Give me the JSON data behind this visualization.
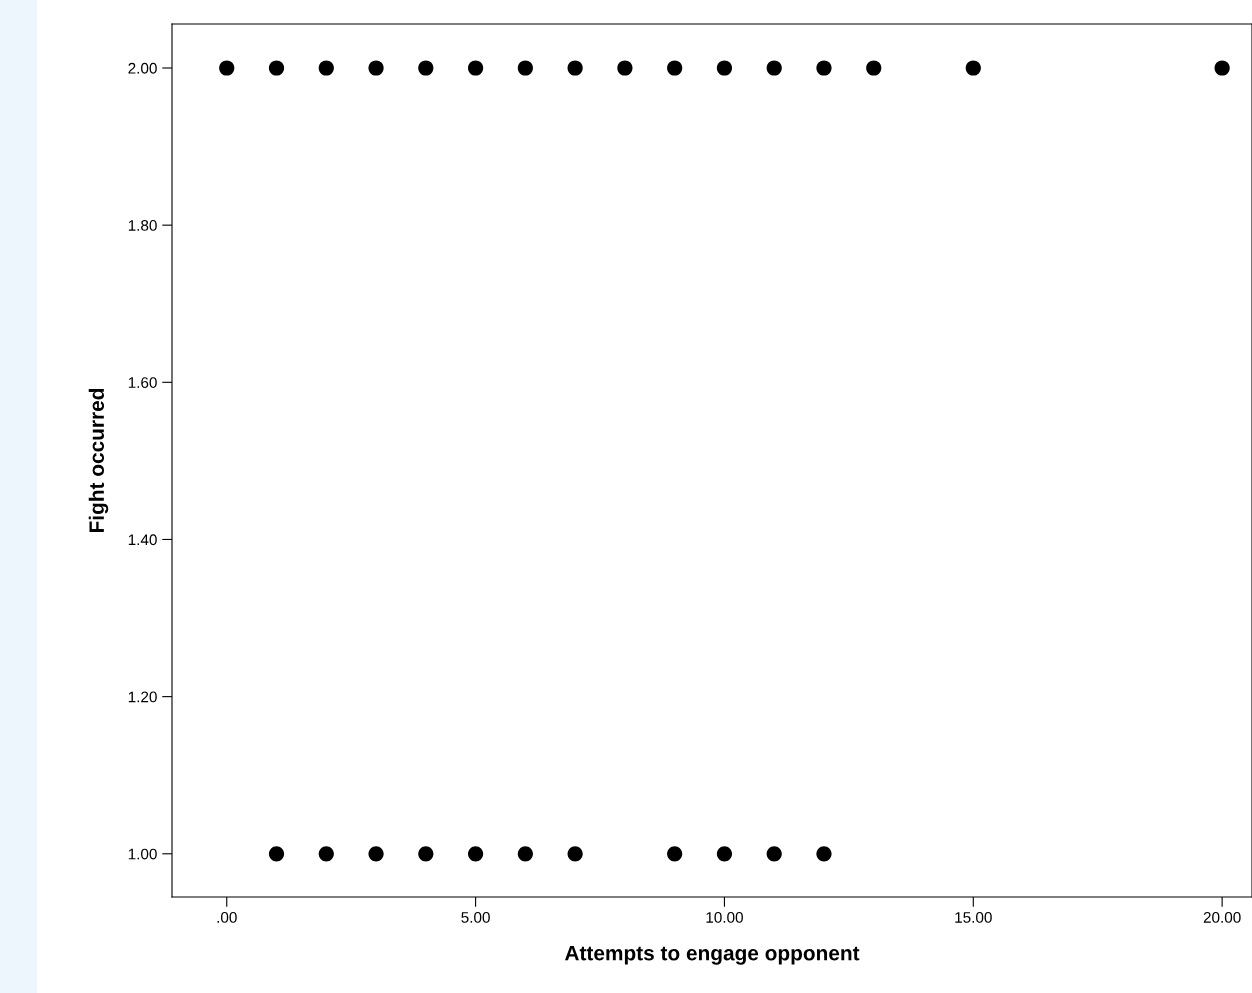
{
  "chart_data": {
    "type": "scatter",
    "xlabel": "Attempts to engage opponent",
    "ylabel": "Fight occurred",
    "series": [
      {
        "color": "#000000",
        "x": [
          0,
          1,
          2,
          3,
          4,
          5,
          6,
          7,
          8,
          9,
          10,
          11,
          12,
          13,
          15,
          20
        ],
        "values": [
          2,
          2,
          2,
          2,
          2,
          2,
          2,
          2,
          2,
          2,
          2,
          2,
          2,
          2,
          2,
          2
        ]
      },
      {
        "color": "#000000",
        "x": [
          1,
          2,
          3,
          4,
          5,
          6,
          7,
          9,
          10,
          11,
          12
        ],
        "values": [
          1,
          1,
          1,
          1,
          1,
          1,
          1,
          1,
          1,
          1,
          1
        ]
      }
    ],
    "xlim": [
      -1.1,
      20.6
    ],
    "ylim": [
      0.945,
      2.056
    ],
    "xticks": [
      {
        "value": 0,
        "label": ".00"
      },
      {
        "value": 5,
        "label": "5.00"
      },
      {
        "value": 10,
        "label": "10.00"
      },
      {
        "value": 15,
        "label": "15.00"
      },
      {
        "value": 20,
        "label": "20.00"
      }
    ],
    "yticks": [
      {
        "value": 1,
        "label": "1.00"
      },
      {
        "value": 1.2,
        "label": "1.20"
      },
      {
        "value": 1.4,
        "label": "1.40"
      },
      {
        "value": 1.6,
        "label": "1.60"
      },
      {
        "value": 1.8,
        "label": "1.80"
      },
      {
        "value": 2,
        "label": "2.00"
      }
    ],
    "marker": "circle",
    "grid": false,
    "legend": false
  }
}
